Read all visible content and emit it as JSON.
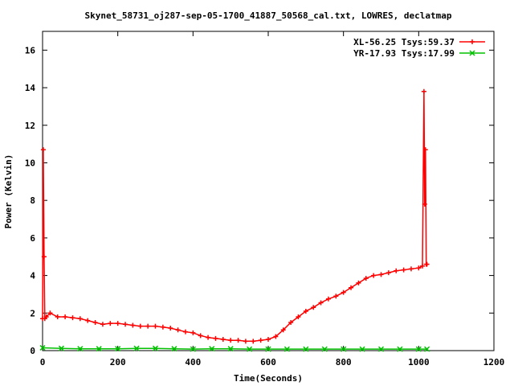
{
  "chart_data": {
    "type": "line",
    "title": "Skynet_58731_oj287-sep-05-1700_41887_50568_cal.txt, LOWRES, declatmap",
    "xlabel": "Time(Seconds)",
    "ylabel": "Power (Kelvin)",
    "xlim": [
      0,
      1200
    ],
    "ylim": [
      0,
      17
    ],
    "xticks": [
      "0",
      "200",
      "400",
      "600",
      "800",
      "1000",
      "1200"
    ],
    "yticks": [
      "0",
      "2",
      "4",
      "6",
      "8",
      "10",
      "12",
      "14",
      "16"
    ],
    "grid": false,
    "legend_position": "top-right",
    "series": [
      {
        "name": "XL-56.25 Tsys:59.37",
        "color": "#ff0000",
        "marker": "plus",
        "x": [
          0,
          2,
          4,
          6,
          10,
          20,
          40,
          60,
          80,
          100,
          120,
          140,
          160,
          180,
          200,
          220,
          240,
          260,
          280,
          300,
          320,
          340,
          360,
          380,
          400,
          420,
          440,
          460,
          480,
          500,
          520,
          540,
          560,
          580,
          600,
          620,
          640,
          660,
          680,
          700,
          720,
          740,
          760,
          780,
          800,
          820,
          840,
          860,
          880,
          900,
          920,
          940,
          960,
          980,
          1000,
          1010,
          1014,
          1016,
          1018,
          1020,
          1022
        ],
        "values": [
          1.7,
          10.7,
          5.0,
          1.7,
          1.8,
          2.0,
          1.8,
          1.8,
          1.75,
          1.7,
          1.6,
          1.5,
          1.4,
          1.45,
          1.45,
          1.4,
          1.35,
          1.3,
          1.3,
          1.3,
          1.25,
          1.2,
          1.1,
          1.0,
          0.95,
          0.8,
          0.7,
          0.65,
          0.6,
          0.55,
          0.55,
          0.5,
          0.5,
          0.55,
          0.6,
          0.75,
          1.1,
          1.5,
          1.8,
          2.1,
          2.3,
          2.55,
          2.75,
          2.9,
          3.1,
          3.35,
          3.6,
          3.85,
          4.0,
          4.05,
          4.15,
          4.25,
          4.3,
          4.35,
          4.4,
          4.5,
          13.8,
          7.8,
          10.7,
          4.6,
          4.6
        ]
      },
      {
        "name": "YR-17.93 Tsys:17.99",
        "color": "#00c000",
        "marker": "cross",
        "x": [
          0,
          50,
          100,
          150,
          200,
          250,
          300,
          350,
          400,
          450,
          500,
          550,
          600,
          650,
          700,
          750,
          800,
          850,
          900,
          950,
          1000,
          1022
        ],
        "values": [
          0.15,
          0.12,
          0.1,
          0.1,
          0.1,
          0.12,
          0.12,
          0.1,
          0.08,
          0.1,
          0.1,
          0.08,
          0.08,
          0.08,
          0.08,
          0.08,
          0.08,
          0.08,
          0.08,
          0.08,
          0.08,
          0.08
        ]
      }
    ]
  }
}
